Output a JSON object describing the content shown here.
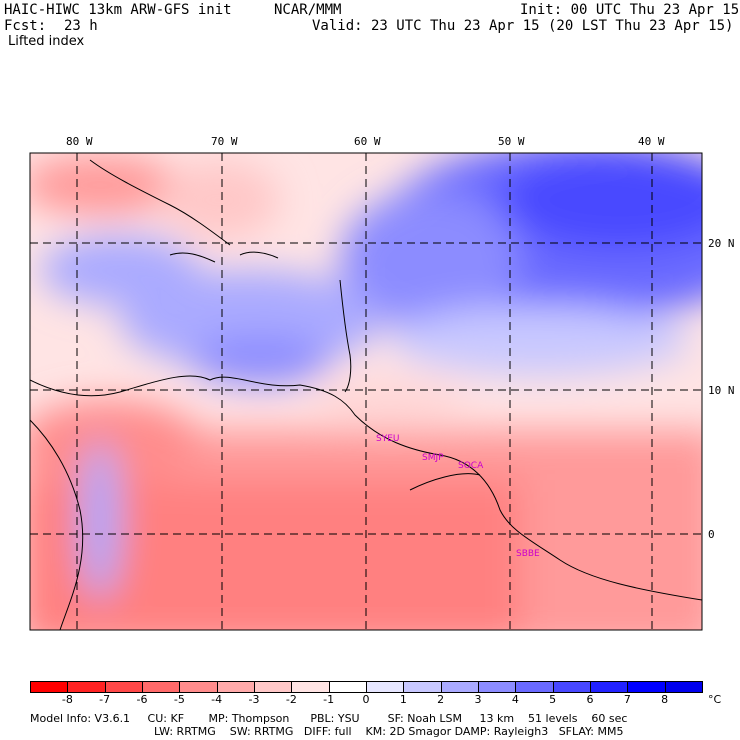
{
  "header": {
    "model": "HAIC-HIWC 13km ARW-GFS init",
    "center": "NCAR/MMM",
    "init": "Init: 00 UTC Thu 23 Apr 15",
    "fcst_label": "Fcst:",
    "fcst_value": "23 h",
    "valid": "Valid: 23 UTC Thu 23 Apr 15 (20 LST Thu 23 Apr 15)",
    "field": "Lifted index"
  },
  "map": {
    "lon_labels": [
      "80 W",
      "70 W",
      "60 W",
      "50 W",
      "40 W"
    ],
    "lat_labels": [
      "20 N",
      "10 N",
      "0"
    ],
    "stations": [
      "SYEU",
      "SMJP",
      "SOCA",
      "SBBE"
    ]
  },
  "colorbar": {
    "labels": [
      "-8",
      "-7",
      "-6",
      "-5",
      "-4",
      "-3",
      "-2",
      "-1",
      "0",
      "1",
      "2",
      "3",
      "4",
      "5",
      "6",
      "7",
      "8"
    ],
    "unit": "°C",
    "colors": [
      "#ff0000",
      "#ff2222",
      "#ff4848",
      "#ff6a6a",
      "#ff8c8c",
      "#ffaaaa",
      "#ffc8c8",
      "#ffe4e4",
      "#ffffff",
      "#e6e6ff",
      "#c8c8ff",
      "#aaaaff",
      "#8c8cff",
      "#6a6aff",
      "#4848ff",
      "#2222ff",
      "#0000ff"
    ]
  },
  "footer": {
    "line1": "Model Info: V3.6.1     CU: KF       MP: Thompson      PBL: YSU        SF: Noah LSM     13 km    51 levels    60 sec",
    "line2": "LW: RRTMG    SW: RRTMG   DIFF: full    KM: 2D Smagor DAMP: Rayleigh3   SFLAY: MM5"
  }
}
